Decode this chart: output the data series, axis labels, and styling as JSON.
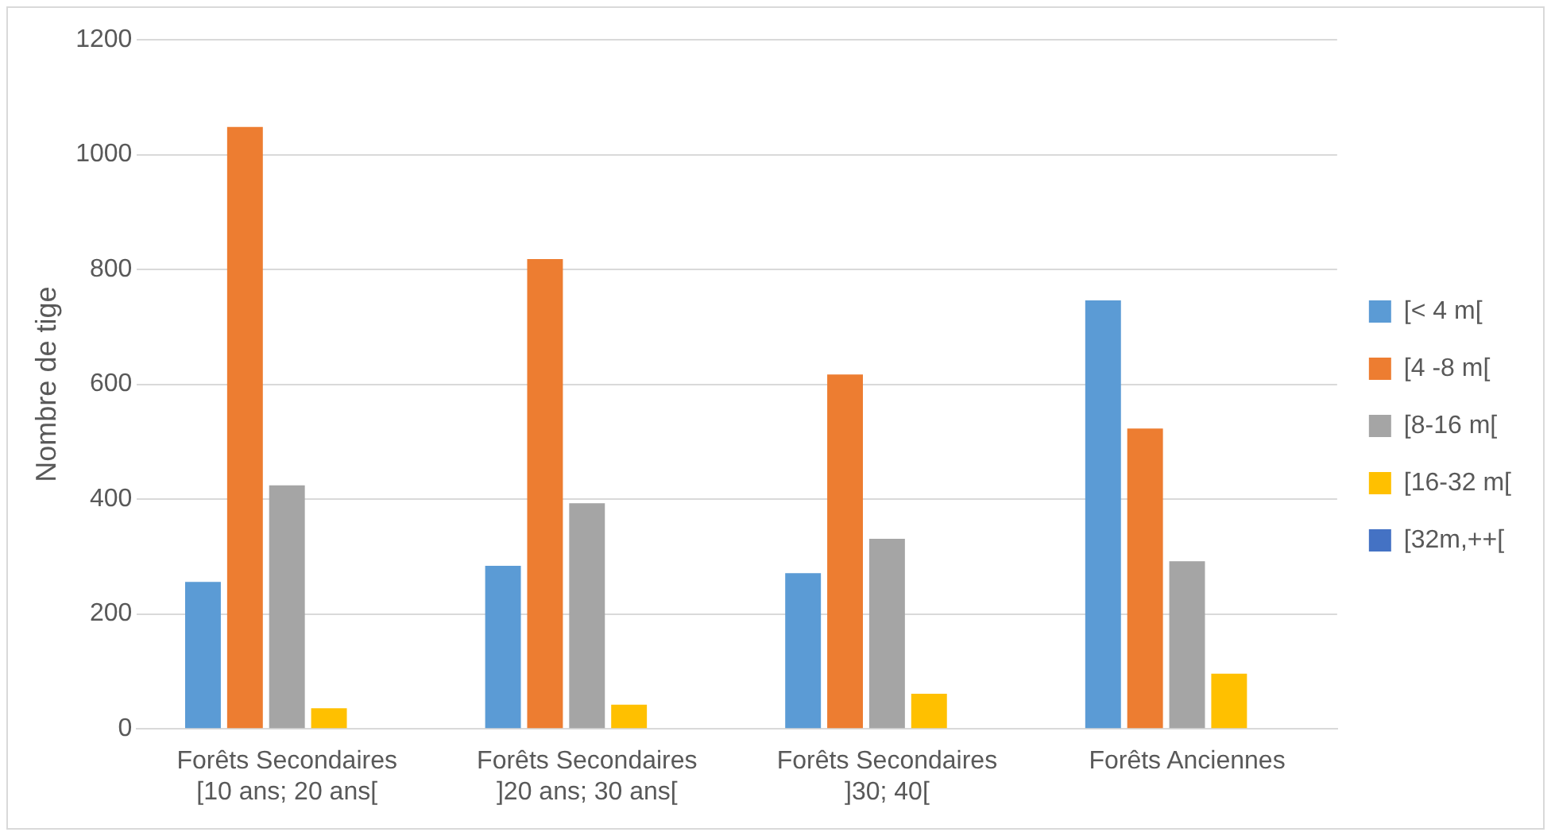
{
  "chart_data": {
    "type": "bar",
    "ylabel": "Nombre de tige",
    "categories": [
      "Forêts Secondaires\n[10 ans; 20 ans[",
      "Forêts Secondaires\n]20 ans; 30 ans[",
      "Forêts Secondaires\n]30; 40[",
      "Forêts Anciennes"
    ],
    "series": [
      {
        "name": "[< 4 m[",
        "color": "#5b9bd5",
        "values": [
          256,
          284,
          271,
          746
        ]
      },
      {
        "name": "[4 -8 m[",
        "color": "#ed7d31",
        "values": [
          1048,
          818,
          617,
          523
        ]
      },
      {
        "name": "[8-16 m[",
        "color": "#a5a5a5",
        "values": [
          424,
          393,
          331,
          292
        ]
      },
      {
        "name": "[16-32 m[",
        "color": "#ffc000",
        "values": [
          36,
          42,
          61,
          96
        ]
      },
      {
        "name": "[32m,++[",
        "color": "#4472c4",
        "values": [
          0,
          0,
          0,
          0
        ]
      }
    ],
    "ylim": [
      0,
      1200
    ],
    "yticks": [
      0,
      200,
      400,
      600,
      800,
      1000,
      1200
    ],
    "grid": "y",
    "legend": "right"
  }
}
